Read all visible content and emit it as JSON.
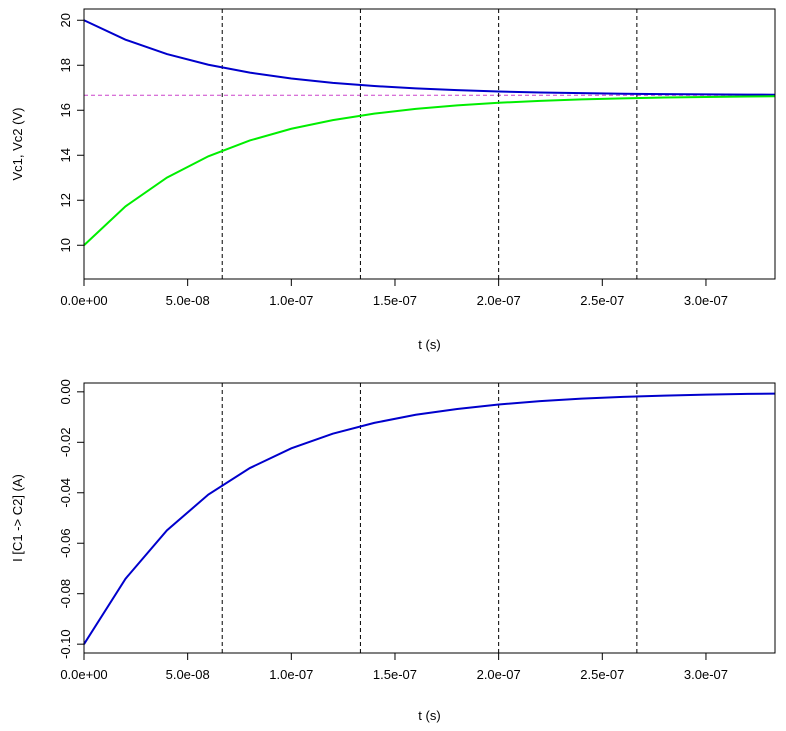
{
  "chart_data": [
    {
      "type": "line",
      "title": "",
      "xlabel": "t (s)",
      "ylabel": "Vc1, Vc2  (V)",
      "xlim": [
        0,
        3.333e-07
      ],
      "ylim": [
        8.5,
        20.5
      ],
      "x_ticks": [
        {
          "value": 0,
          "label": "0.0e+00"
        },
        {
          "value": 5e-08,
          "label": "5.0e-08"
        },
        {
          "value": 1e-07,
          "label": "1.0e-07"
        },
        {
          "value": 1.5e-07,
          "label": "1.5e-07"
        },
        {
          "value": 2e-07,
          "label": "2.0e-07"
        },
        {
          "value": 2.5e-07,
          "label": "2.5e-07"
        },
        {
          "value": 3e-07,
          "label": "3.0e-07"
        }
      ],
      "y_ticks": [
        {
          "value": 10,
          "label": "10"
        },
        {
          "value": 12,
          "label": "12"
        },
        {
          "value": 14,
          "label": "14"
        },
        {
          "value": 16,
          "label": "16"
        },
        {
          "value": 18,
          "label": "18"
        },
        {
          "value": 20,
          "label": "20"
        }
      ],
      "vlines": [
        6.667e-08,
        1.3333e-07,
        2e-07,
        2.6667e-07
      ],
      "hlines": [
        {
          "y": 16.667,
          "color": "#cc44cc"
        }
      ],
      "grid": false,
      "legend": "none",
      "series": [
        {
          "color": "#0000cc",
          "x": [
            0,
            2e-08,
            4e-08,
            6e-08,
            8e-08,
            1e-07,
            1.2e-07,
            1.4e-07,
            1.6e-07,
            1.8e-07,
            2e-07,
            2.2e-07,
            2.4e-07,
            2.6e-07,
            2.8e-07,
            3e-07,
            3.2e-07,
            3.333e-07
          ],
          "y": [
            20.0,
            19.136,
            18.496,
            18.023,
            17.671,
            17.411,
            17.218,
            17.076,
            16.97,
            16.892,
            16.834,
            16.791,
            16.759,
            16.735,
            16.718,
            16.705,
            16.696,
            16.689
          ]
        },
        {
          "color": "#00ee00",
          "x": [
            0,
            2e-08,
            4e-08,
            6e-08,
            8e-08,
            1e-07,
            1.2e-07,
            1.4e-07,
            1.6e-07,
            1.8e-07,
            2e-07,
            2.2e-07,
            2.4e-07,
            2.6e-07,
            2.8e-07,
            3e-07,
            3.2e-07,
            3.333e-07
          ],
          "y": [
            10.0,
            11.728,
            13.008,
            13.955,
            14.657,
            15.177,
            15.562,
            15.848,
            16.06,
            16.216,
            16.333,
            16.418,
            16.482,
            16.529,
            16.564,
            16.59,
            16.61,
            16.622
          ]
        }
      ]
    },
    {
      "type": "line",
      "title": "",
      "xlabel": "t (s)",
      "ylabel": "I [C1 -> C2]  (A)",
      "xlim": [
        0,
        3.333e-07
      ],
      "ylim": [
        -0.1035,
        0.0035
      ],
      "x_ticks": [
        {
          "value": 0,
          "label": "0.0e+00"
        },
        {
          "value": 5e-08,
          "label": "5.0e-08"
        },
        {
          "value": 1e-07,
          "label": "1.0e-07"
        },
        {
          "value": 1.5e-07,
          "label": "1.5e-07"
        },
        {
          "value": 2e-07,
          "label": "2.0e-07"
        },
        {
          "value": 2.5e-07,
          "label": "2.5e-07"
        },
        {
          "value": 3e-07,
          "label": "3.0e-07"
        }
      ],
      "y_ticks": [
        {
          "value": -0.1,
          "label": "-0.10"
        },
        {
          "value": -0.08,
          "label": "-0.08"
        },
        {
          "value": -0.06,
          "label": "-0.06"
        },
        {
          "value": -0.04,
          "label": "-0.04"
        },
        {
          "value": -0.02,
          "label": "-0.02"
        },
        {
          "value": 0.0,
          "label": "0.00"
        }
      ],
      "vlines": [
        6.667e-08,
        1.3333e-07,
        2e-07,
        2.6667e-07
      ],
      "hlines": [],
      "grid": false,
      "legend": "none",
      "series": [
        {
          "color": "#0000cc",
          "x": [
            0,
            2e-08,
            4e-08,
            6e-08,
            8e-08,
            1e-07,
            1.2e-07,
            1.4e-07,
            1.6e-07,
            1.8e-07,
            2e-07,
            2.2e-07,
            2.4e-07,
            2.6e-07,
            2.8e-07,
            3e-07,
            3.2e-07,
            3.333e-07
          ],
          "y": [
            -0.1,
            -0.0741,
            -0.0549,
            -0.0407,
            -0.0302,
            -0.0224,
            -0.0166,
            -0.0123,
            -0.0091,
            -0.0068,
            -0.005,
            -0.0037,
            -0.0027,
            -0.002,
            -0.0015,
            -0.0011,
            -0.0008,
            -0.0007
          ]
        }
      ]
    }
  ]
}
